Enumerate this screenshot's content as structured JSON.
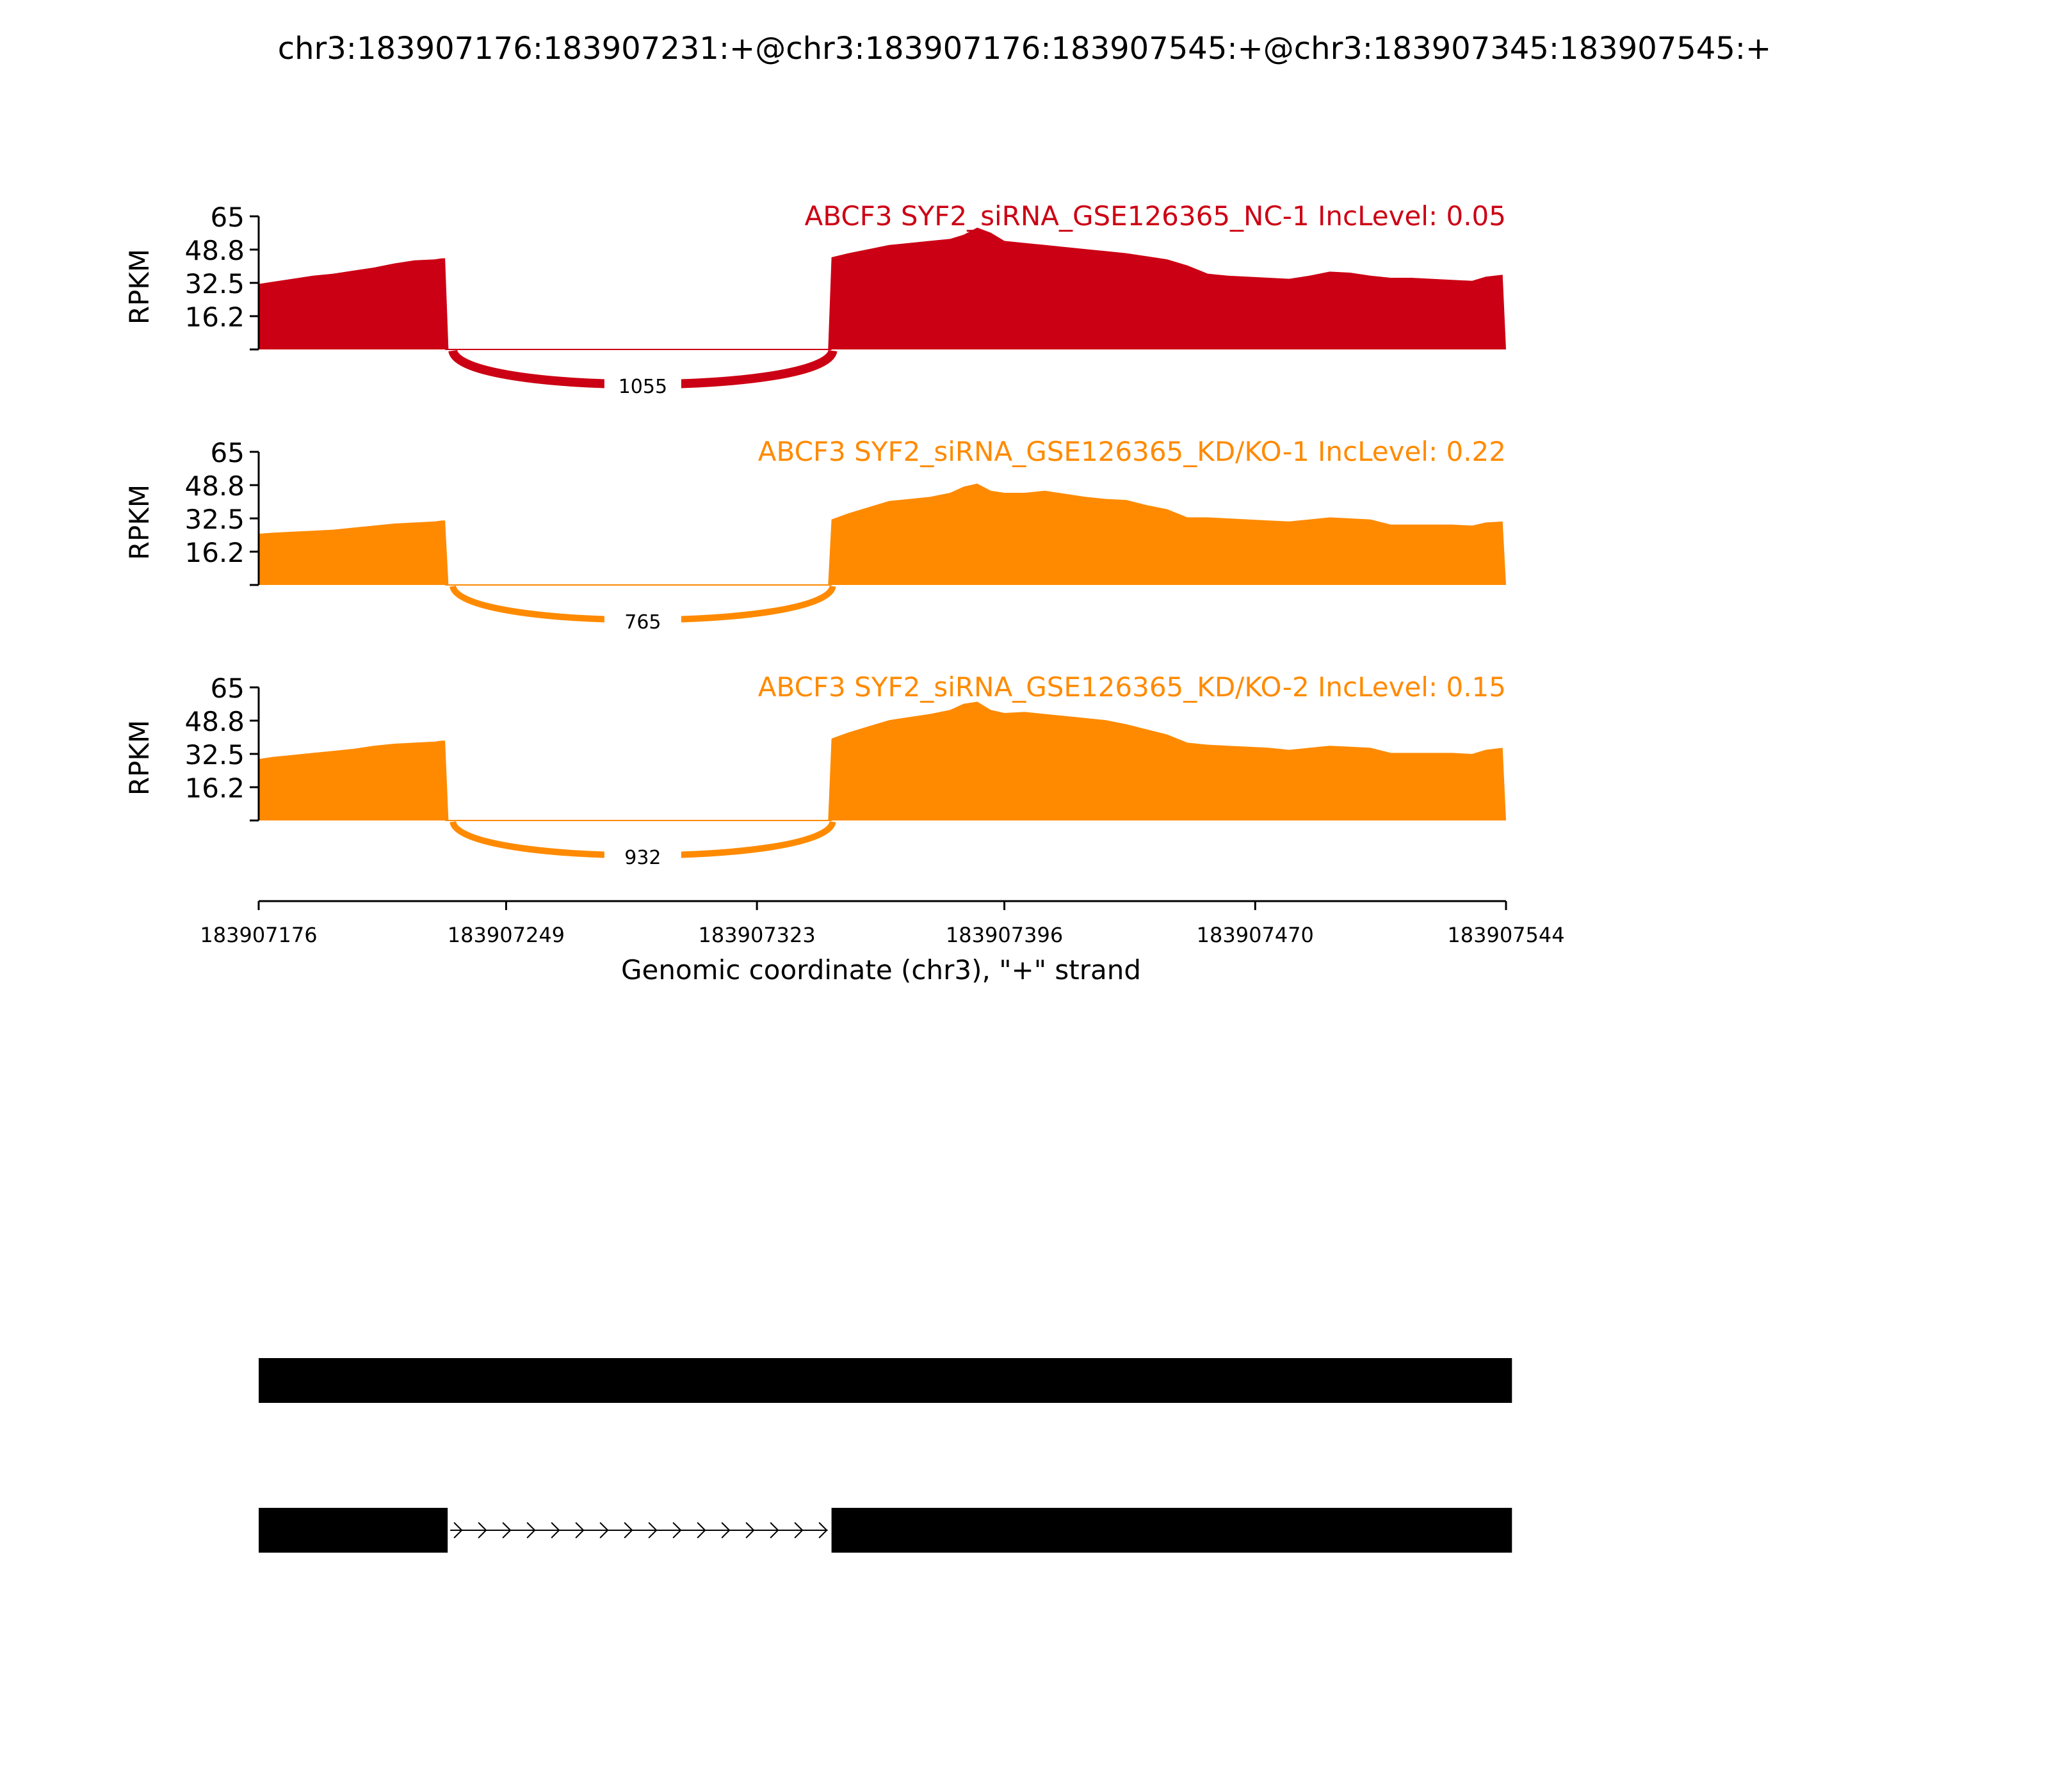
{
  "chart_data": {
    "type": "area",
    "title": "chr3:183907176:183907231:+@chr3:183907176:183907545:+@chr3:183907345:183907545:+",
    "xlabel": "Genomic coordinate (chr3), \"+\" strand",
    "ylabel": "RPKM",
    "xlim": [
      183907176,
      183907544
    ],
    "ylim": [
      0,
      65
    ],
    "x_ticks": [
      "183907176",
      "183907249",
      "183907323",
      "183907396",
      "183907470",
      "183907544"
    ],
    "y_ticks": [
      "65",
      "48.8",
      "32.5",
      "16.2"
    ],
    "exon1_end": 183907231,
    "exon2_start": 183907345,
    "colors": {
      "nc": "#cc0014",
      "kd": "#ff8a00",
      "gene": "#000000"
    },
    "tracks": [
      {
        "name": "ABCF3 SYF2_siRNA_GSE126365_NC-1 IncLevel: 0.05",
        "color": "#cc0014",
        "junction_count": "1055",
        "coverage": [
          [
            183907176,
            32
          ],
          [
            183907180,
            33
          ],
          [
            183907186,
            34.5
          ],
          [
            183907192,
            36
          ],
          [
            183907198,
            37
          ],
          [
            183907204,
            38.5
          ],
          [
            183907210,
            40
          ],
          [
            183907216,
            42
          ],
          [
            183907222,
            43.5
          ],
          [
            183907228,
            44
          ],
          [
            183907230,
            44.5
          ],
          [
            183907231,
            44.5
          ],
          [
            183907232,
            0
          ],
          [
            183907344,
            0
          ],
          [
            183907345,
            45
          ],
          [
            183907350,
            47
          ],
          [
            183907356,
            49
          ],
          [
            183907362,
            51
          ],
          [
            183907368,
            52
          ],
          [
            183907374,
            53
          ],
          [
            183907380,
            54
          ],
          [
            183907384,
            56
          ],
          [
            183907388,
            59.5
          ],
          [
            183907392,
            57
          ],
          [
            183907396,
            53
          ],
          [
            183907402,
            52
          ],
          [
            183907408,
            51
          ],
          [
            183907414,
            50
          ],
          [
            183907420,
            49
          ],
          [
            183907426,
            48
          ],
          [
            183907432,
            47
          ],
          [
            183907438,
            45.5
          ],
          [
            183907444,
            44
          ],
          [
            183907450,
            41
          ],
          [
            183907456,
            37
          ],
          [
            183907462,
            36
          ],
          [
            183907468,
            35.5
          ],
          [
            183907474,
            35
          ],
          [
            183907480,
            34.5
          ],
          [
            183907486,
            36
          ],
          [
            183907492,
            38
          ],
          [
            183907498,
            37.5
          ],
          [
            183907504,
            36
          ],
          [
            183907510,
            35
          ],
          [
            183907516,
            35
          ],
          [
            183907522,
            34.5
          ],
          [
            183907528,
            34
          ],
          [
            183907534,
            33.5
          ],
          [
            183907538,
            35.5
          ],
          [
            183907543,
            36.5
          ],
          [
            183907544,
            0
          ]
        ]
      },
      {
        "name": "ABCF3 SYF2_siRNA_GSE126365_KD/KO-1 IncLevel: 0.22",
        "color": "#ff8a00",
        "junction_count": "765",
        "coverage": [
          [
            183907176,
            25
          ],
          [
            183907180,
            25.5
          ],
          [
            183907186,
            26
          ],
          [
            183907192,
            26.5
          ],
          [
            183907198,
            27
          ],
          [
            183907204,
            28
          ],
          [
            183907210,
            29
          ],
          [
            183907216,
            30
          ],
          [
            183907222,
            30.5
          ],
          [
            183907228,
            31
          ],
          [
            183907230,
            31.5
          ],
          [
            183907231,
            31.5
          ],
          [
            183907232,
            0
          ],
          [
            183907344,
            0
          ],
          [
            183907345,
            32
          ],
          [
            183907350,
            35
          ],
          [
            183907356,
            38
          ],
          [
            183907362,
            41
          ],
          [
            183907368,
            42
          ],
          [
            183907374,
            43
          ],
          [
            183907380,
            45
          ],
          [
            183907384,
            48
          ],
          [
            183907388,
            49.5
          ],
          [
            183907392,
            46
          ],
          [
            183907396,
            45
          ],
          [
            183907402,
            45
          ],
          [
            183907408,
            46
          ],
          [
            183907414,
            44.5
          ],
          [
            183907420,
            43
          ],
          [
            183907426,
            42
          ],
          [
            183907432,
            41.5
          ],
          [
            183907438,
            39
          ],
          [
            183907444,
            37
          ],
          [
            183907450,
            33
          ],
          [
            183907456,
            33
          ],
          [
            183907462,
            32.5
          ],
          [
            183907468,
            32
          ],
          [
            183907474,
            31.5
          ],
          [
            183907480,
            31
          ],
          [
            183907486,
            32
          ],
          [
            183907492,
            33
          ],
          [
            183907498,
            32.5
          ],
          [
            183907504,
            32
          ],
          [
            183907510,
            29.5
          ],
          [
            183907516,
            29.5
          ],
          [
            183907522,
            29.5
          ],
          [
            183907528,
            29.5
          ],
          [
            183907534,
            29
          ],
          [
            183907538,
            30.5
          ],
          [
            183907543,
            31
          ],
          [
            183907544,
            0
          ]
        ]
      },
      {
        "name": "ABCF3 SYF2_siRNA_GSE126365_KD/KO-2 IncLevel: 0.15",
        "color": "#ff8a00",
        "junction_count": "932",
        "coverage": [
          [
            183907176,
            30
          ],
          [
            183907180,
            31
          ],
          [
            183907186,
            32
          ],
          [
            183907192,
            33
          ],
          [
            183907198,
            34
          ],
          [
            183907204,
            35
          ],
          [
            183907210,
            36.5
          ],
          [
            183907216,
            37.5
          ],
          [
            183907222,
            38
          ],
          [
            183907228,
            38.5
          ],
          [
            183907230,
            39
          ],
          [
            183907231,
            39
          ],
          [
            183907232,
            0
          ],
          [
            183907344,
            0
          ],
          [
            183907345,
            40
          ],
          [
            183907350,
            43
          ],
          [
            183907356,
            46
          ],
          [
            183907362,
            49
          ],
          [
            183907368,
            50.5
          ],
          [
            183907374,
            52
          ],
          [
            183907380,
            54
          ],
          [
            183907384,
            57
          ],
          [
            183907388,
            58
          ],
          [
            183907392,
            54
          ],
          [
            183907396,
            52.5
          ],
          [
            183907402,
            53
          ],
          [
            183907408,
            52
          ],
          [
            183907414,
            51
          ],
          [
            183907420,
            50
          ],
          [
            183907426,
            49
          ],
          [
            183907432,
            47
          ],
          [
            183907438,
            44.5
          ],
          [
            183907444,
            42
          ],
          [
            183907450,
            38
          ],
          [
            183907456,
            37
          ],
          [
            183907462,
            36.5
          ],
          [
            183907468,
            36
          ],
          [
            183907474,
            35.5
          ],
          [
            183907480,
            34.5
          ],
          [
            183907486,
            35.5
          ],
          [
            183907492,
            36.5
          ],
          [
            183907498,
            36
          ],
          [
            183907504,
            35.5
          ],
          [
            183907510,
            33
          ],
          [
            183907516,
            33
          ],
          [
            183907522,
            33
          ],
          [
            183907528,
            33
          ],
          [
            183907534,
            32.5
          ],
          [
            183907538,
            34.5
          ],
          [
            183907543,
            35.5
          ],
          [
            183907544,
            0
          ]
        ]
      }
    ],
    "gene_models": [
      {
        "exons": [
          [
            183907176,
            183907545
          ]
        ]
      },
      {
        "exons": [
          [
            183907176,
            183907231
          ],
          [
            183907345,
            183907545
          ]
        ]
      }
    ]
  }
}
